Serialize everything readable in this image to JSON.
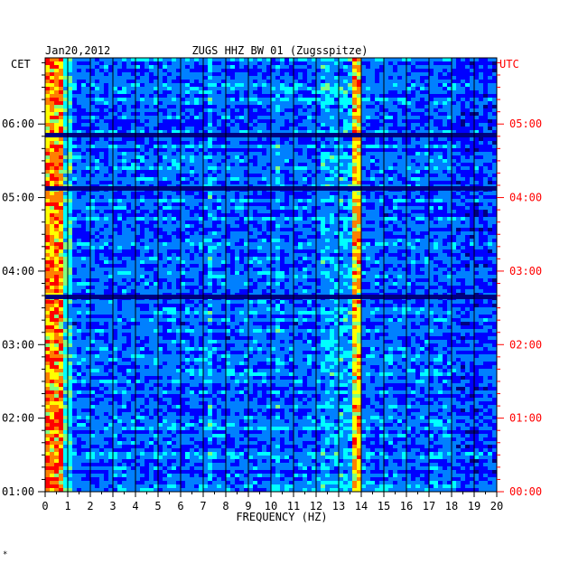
{
  "chart_data": {
    "type": "heatmap",
    "title": "ZUGS HHZ BW 01 (Zugsspitze)",
    "date": "Jan20,2012",
    "left_axis_label": "CET",
    "right_axis_label": "UTC",
    "xlabel": "FREQUENCY (HZ)",
    "xlim": [
      0,
      20
    ],
    "x_ticks": [
      "0",
      "1",
      "2",
      "3",
      "4",
      "5",
      "6",
      "7",
      "8",
      "9",
      "10",
      "11",
      "12",
      "13",
      "14",
      "15",
      "16",
      "17",
      "18",
      "19",
      "20"
    ],
    "y_ticks_cet": [
      "06:00",
      "05:00",
      "04:00",
      "03:00",
      "02:00",
      "01:00"
    ],
    "y_ticks_utc": [
      "05:00",
      "04:00",
      "03:00",
      "02:00",
      "01:00",
      "00:00"
    ],
    "time_range_cet_hours": [
      1.0,
      6.9
    ],
    "colormap": [
      "#00007f",
      "#0000ff",
      "#0080ff",
      "#00ffff",
      "#80ff80",
      "#ffff00",
      "#ff8000",
      "#ff0000"
    ],
    "grid": true,
    "footnote": "*"
  }
}
